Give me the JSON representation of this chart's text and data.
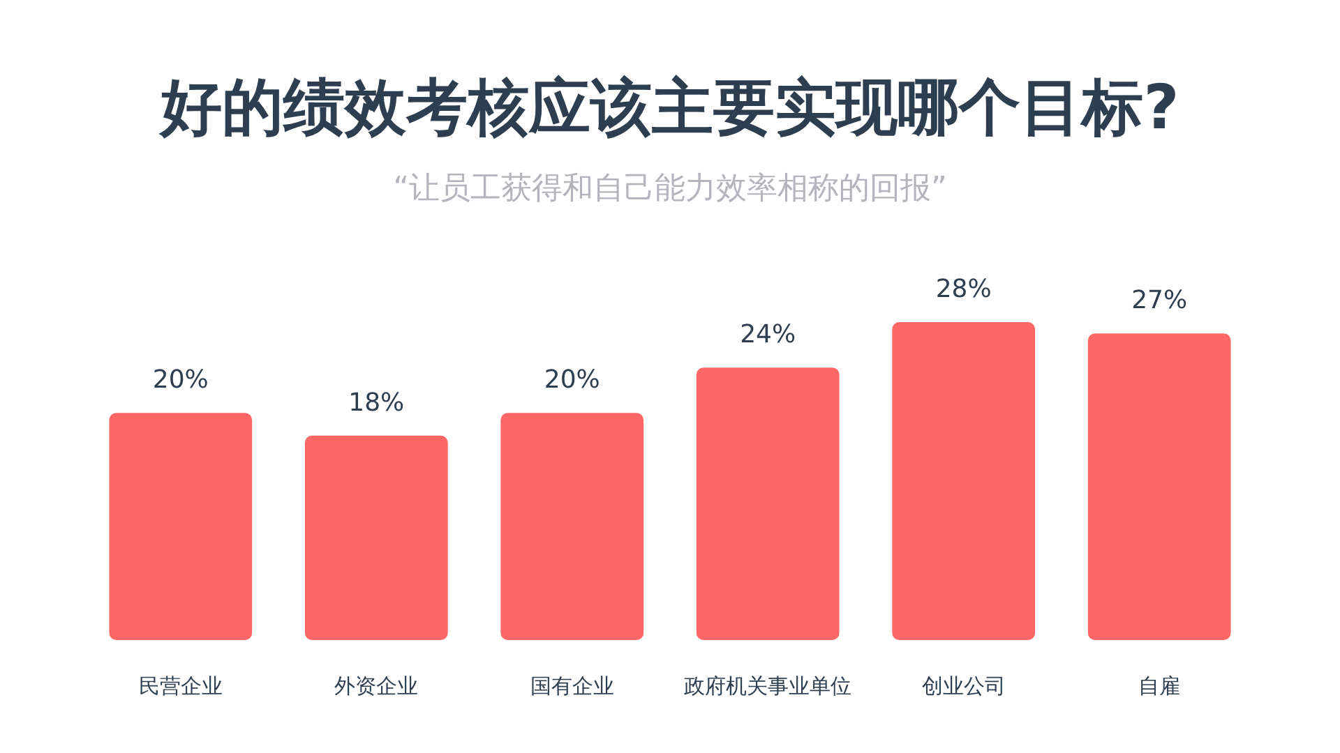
{
  "chart_data": {
    "type": "bar",
    "title": "好的绩效考核应该主要实现哪个目标?",
    "subtitle": "“让员工获得和自己能力效率相称的回报”",
    "categories": [
      "民营企业",
      "外资企业",
      "国有企业",
      "政府机关事业单位",
      "创业公司",
      "自雇"
    ],
    "values": [
      20,
      18,
      20,
      24,
      28,
      27
    ],
    "value_labels": [
      "20%",
      "18%",
      "20%",
      "24%",
      "28%",
      "27%"
    ],
    "color": "#ff6766"
  }
}
